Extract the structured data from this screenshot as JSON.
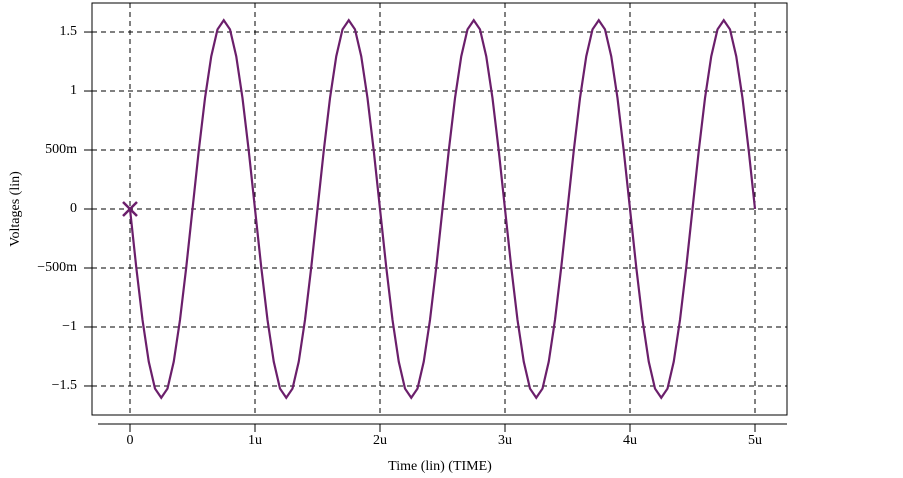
{
  "chart_data": {
    "type": "line",
    "xlabel": "Time (lin) (TIME)",
    "ylabel": "Voltages (lin)",
    "x": [
      0,
      5e-08,
      1e-07,
      1.5e-07,
      2e-07,
      2.5e-07,
      3e-07,
      3.5e-07,
      4e-07,
      4.5e-07,
      5e-07,
      5.5e-07,
      6e-07,
      6.5e-07,
      7e-07,
      7.5e-07,
      8e-07,
      8.5e-07,
      9e-07,
      9.5e-07,
      1e-06,
      1.05e-06,
      1.1e-06,
      1.15e-06,
      1.2e-06,
      1.25e-06,
      1.3e-06,
      1.35e-06,
      1.4e-06,
      1.45e-06,
      1.5e-06,
      1.55e-06,
      1.6e-06,
      1.65e-06,
      1.7e-06,
      1.75e-06,
      1.8e-06,
      1.85e-06,
      1.9e-06,
      1.95e-06,
      2e-06,
      2.05e-06,
      2.1e-06,
      2.15e-06,
      2.2e-06,
      2.25e-06,
      2.3e-06,
      2.35e-06,
      2.4e-06,
      2.45e-06,
      2.5e-06,
      2.55e-06,
      2.6e-06,
      2.65e-06,
      2.7e-06,
      2.75e-06,
      2.8e-06,
      2.85e-06,
      2.9e-06,
      2.95e-06,
      3e-06,
      3.05e-06,
      3.1e-06,
      3.15e-06,
      3.2e-06,
      3.25e-06,
      3.3e-06,
      3.35e-06,
      3.4e-06,
      3.45e-06,
      3.5e-06,
      3.55e-06,
      3.6e-06,
      3.65e-06,
      3.7e-06,
      3.75e-06,
      3.8e-06,
      3.85e-06,
      3.9e-06,
      3.95e-06,
      4e-06,
      4.05e-06,
      4.1e-06,
      4.15e-06,
      4.2e-06,
      4.25e-06,
      4.3e-06,
      4.35e-06,
      4.4e-06,
      4.45e-06,
      4.5e-06,
      4.55e-06,
      4.6e-06,
      4.65e-06,
      4.7e-06,
      4.75e-06,
      4.8e-06,
      4.85e-06,
      4.9e-06,
      4.95e-06,
      5e-06
    ],
    "values": [
      0,
      -0.494,
      -0.94,
      -1.294,
      -1.522,
      -1.6,
      -1.522,
      -1.294,
      -0.94,
      -0.494,
      0,
      0.494,
      0.94,
      1.294,
      1.522,
      1.6,
      1.522,
      1.294,
      0.94,
      0.494,
      0,
      -0.494,
      -0.94,
      -1.294,
      -1.522,
      -1.6,
      -1.522,
      -1.294,
      -0.94,
      -0.494,
      0,
      0.494,
      0.94,
      1.294,
      1.522,
      1.6,
      1.522,
      1.294,
      0.94,
      0.494,
      0,
      -0.494,
      -0.94,
      -1.294,
      -1.522,
      -1.6,
      -1.522,
      -1.294,
      -0.94,
      -0.494,
      0,
      0.494,
      0.94,
      1.294,
      1.522,
      1.6,
      1.522,
      1.294,
      0.94,
      0.494,
      0,
      -0.494,
      -0.94,
      -1.294,
      -1.522,
      -1.6,
      -1.522,
      -1.294,
      -0.94,
      -0.494,
      0,
      0.494,
      0.94,
      1.294,
      1.522,
      1.6,
      1.522,
      1.294,
      0.94,
      0.494,
      0,
      -0.494,
      -0.94,
      -1.294,
      -1.522,
      -1.6,
      -1.522,
      -1.294,
      -0.94,
      -0.494,
      0,
      0.494,
      0.94,
      1.294,
      1.522,
      1.6,
      1.522,
      1.294,
      0.94,
      0.494,
      0
    ],
    "color": "#6b1f6b",
    "xlim": [
      -3.04e-07,
      5.256e-06
    ],
    "ylim": [
      -1.746,
      1.746
    ],
    "xticks": [
      {
        "value": 0,
        "label": "0"
      },
      {
        "value": 1e-06,
        "label": "1u"
      },
      {
        "value": 2e-06,
        "label": "2u"
      },
      {
        "value": 3e-06,
        "label": "3u"
      },
      {
        "value": 4e-06,
        "label": "4u"
      },
      {
        "value": 5e-06,
        "label": "5u"
      }
    ],
    "yticks": [
      {
        "value": -1.5,
        "label": "−1.5"
      },
      {
        "value": -1,
        "label": "−1"
      },
      {
        "value": -0.5,
        "label": "−500m"
      },
      0,
      {
        "value": 0.5,
        "label": "500m"
      },
      1,
      1.5
    ],
    "grid": true
  }
}
